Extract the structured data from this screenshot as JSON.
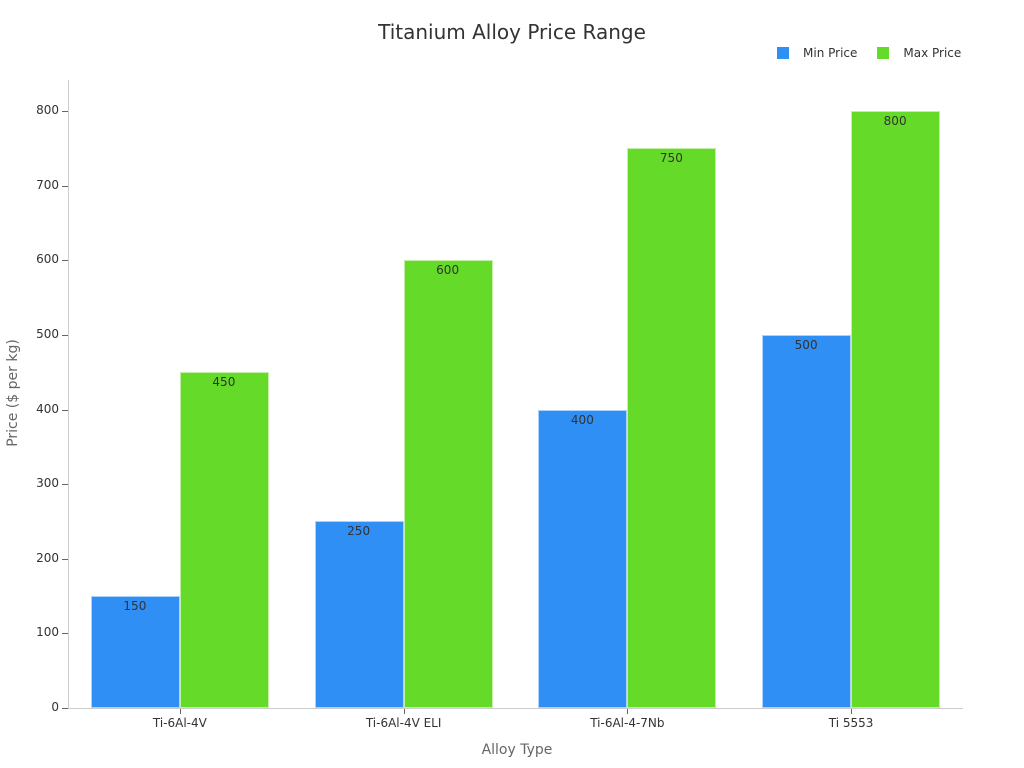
{
  "chart_data": {
    "type": "bar",
    "title": "Titanium Alloy Price Range",
    "xlabel": "Alloy Type",
    "ylabel": "Price ($ per kg)",
    "categories": [
      "Ti-6Al-4V",
      "Ti-6Al-4V ELI",
      "Ti-6Al-4-7Nb",
      "Ti 5553"
    ],
    "series": [
      {
        "name": "Min Price",
        "color": "#2f8ff5",
        "values": [
          150,
          250,
          400,
          500
        ]
      },
      {
        "name": "Max Price",
        "color": "#66da28",
        "values": [
          450,
          600,
          750,
          800
        ]
      }
    ],
    "ylim": [
      0,
      840
    ],
    "yticks": [
      0,
      100,
      200,
      300,
      400,
      500,
      600,
      700,
      800
    ],
    "grid": false,
    "legend_position": "top-right",
    "data_labels": true
  }
}
